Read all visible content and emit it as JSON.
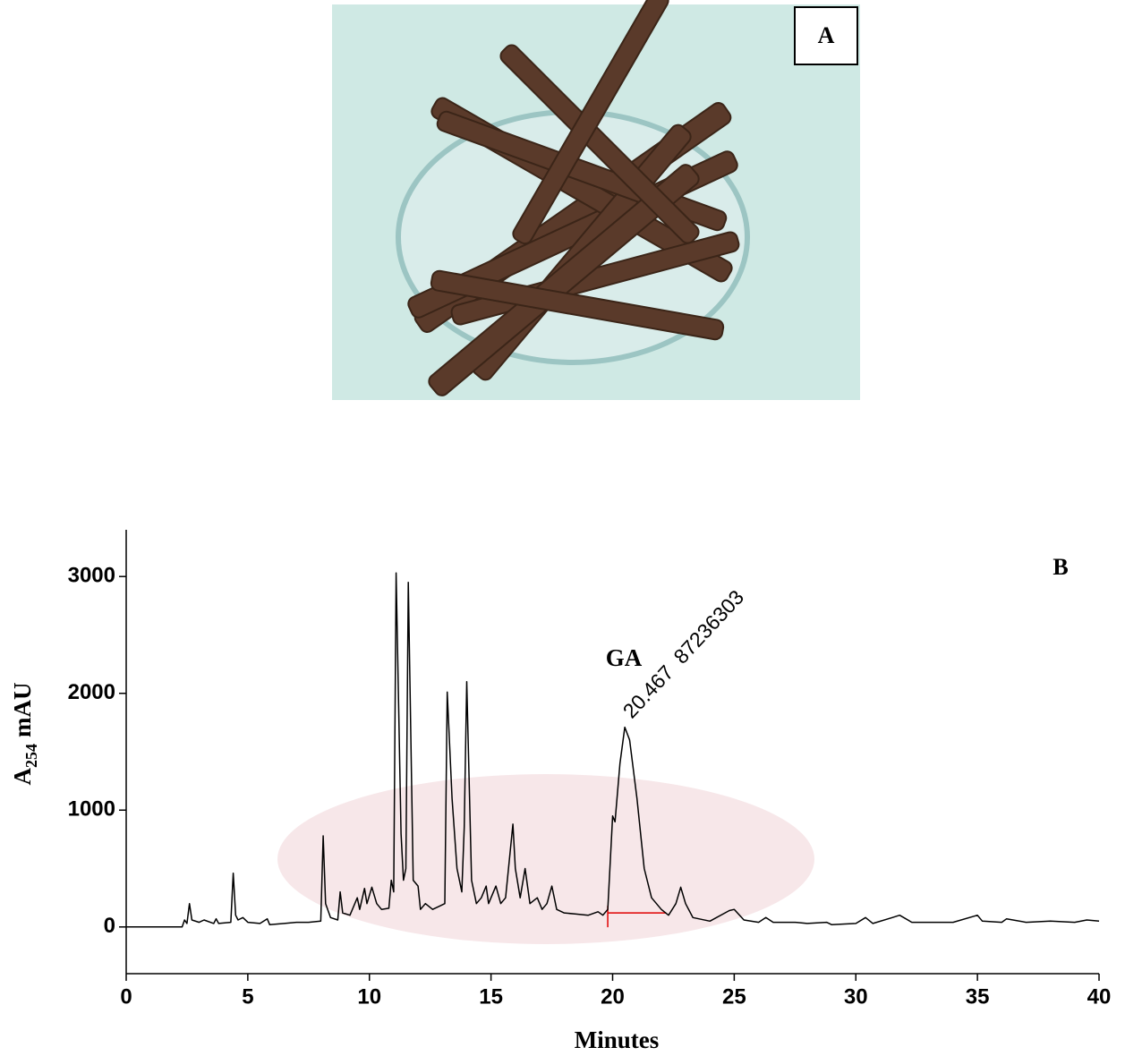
{
  "panel_a": {
    "label": "A"
  },
  "chart_data": {
    "type": "line",
    "panel_label": "B",
    "x_label": "Minutes",
    "y_label": {
      "base": "A",
      "subscript": "254",
      "unit": "mAU"
    },
    "annotations": [
      {
        "text": "GA"
      },
      {
        "text": "20.467  87236303"
      }
    ],
    "color": "#000000",
    "integration_baseline": {
      "x": [
        19.8,
        22.2
      ],
      "y": [
        120,
        120
      ],
      "color": "#e00000"
    },
    "xlim": [
      0,
      40
    ],
    "xticks": [
      0,
      5,
      10,
      15,
      20,
      25,
      30,
      35,
      40
    ],
    "ylim": [
      -400,
      3400
    ],
    "yticks": [
      0,
      1000,
      2000,
      3000
    ],
    "x": [
      0,
      2.3,
      2.4,
      2.5,
      2.6,
      2.7,
      3.0,
      3.2,
      3.6,
      3.7,
      3.8,
      4.3,
      4.4,
      4.5,
      4.6,
      4.8,
      5.0,
      5.5,
      5.8,
      5.9,
      6.5,
      7.0,
      7.5,
      8.0,
      8.1,
      8.2,
      8.4,
      8.7,
      8.8,
      8.9,
      9.2,
      9.5,
      9.6,
      9.8,
      9.9,
      10.1,
      10.3,
      10.5,
      10.8,
      10.9,
      11.0,
      11.1,
      11.3,
      11.4,
      11.5,
      11.6,
      11.8,
      12.0,
      12.1,
      12.3,
      12.6,
      12.9,
      13.1,
      13.2,
      13.4,
      13.6,
      13.8,
      13.9,
      14.0,
      14.2,
      14.4,
      14.6,
      14.8,
      14.9,
      15.2,
      15.4,
      15.6,
      15.9,
      16.0,
      16.2,
      16.4,
      16.6,
      16.9,
      17.1,
      17.3,
      17.5,
      17.7,
      18.0,
      18.5,
      19.0,
      19.4,
      19.6,
      19.8,
      20.0,
      20.1,
      20.3,
      20.5,
      20.7,
      21.0,
      21.3,
      21.6,
      22.0,
      22.3,
      22.6,
      22.8,
      23.0,
      23.3,
      24.0,
      24.8,
      25.0,
      25.4,
      26.0,
      26.3,
      26.6,
      27.5,
      28.0,
      28.8,
      29.0,
      30.0,
      30.4,
      30.7,
      31.5,
      31.8,
      32.3,
      33.0,
      34.0,
      35.0,
      35.2,
      36.0,
      36.2,
      37.0,
      38.0,
      39.0,
      39.5,
      40.0
    ],
    "values": [
      0,
      0,
      60,
      30,
      200,
      60,
      40,
      60,
      30,
      70,
      30,
      40,
      460,
      100,
      60,
      80,
      40,
      30,
      70,
      20,
      30,
      40,
      40,
      50,
      780,
      200,
      80,
      60,
      300,
      120,
      100,
      250,
      150,
      330,
      200,
      340,
      200,
      150,
      160,
      400,
      300,
      3030,
      800,
      400,
      500,
      2950,
      400,
      350,
      150,
      200,
      150,
      180,
      200,
      2010,
      1100,
      500,
      300,
      850,
      2100,
      400,
      200,
      250,
      350,
      200,
      350,
      200,
      250,
      880,
      500,
      250,
      500,
      200,
      250,
      150,
      200,
      350,
      150,
      120,
      110,
      100,
      130,
      100,
      150,
      950,
      900,
      1400,
      1710,
      1600,
      1100,
      500,
      250,
      150,
      100,
      200,
      340,
      200,
      80,
      50,
      140,
      150,
      60,
      40,
      80,
      40,
      40,
      30,
      40,
      20,
      30,
      80,
      30,
      80,
      100,
      40,
      40,
      40,
      100,
      50,
      40,
      70,
      40,
      50,
      40,
      60,
      50
    ]
  }
}
